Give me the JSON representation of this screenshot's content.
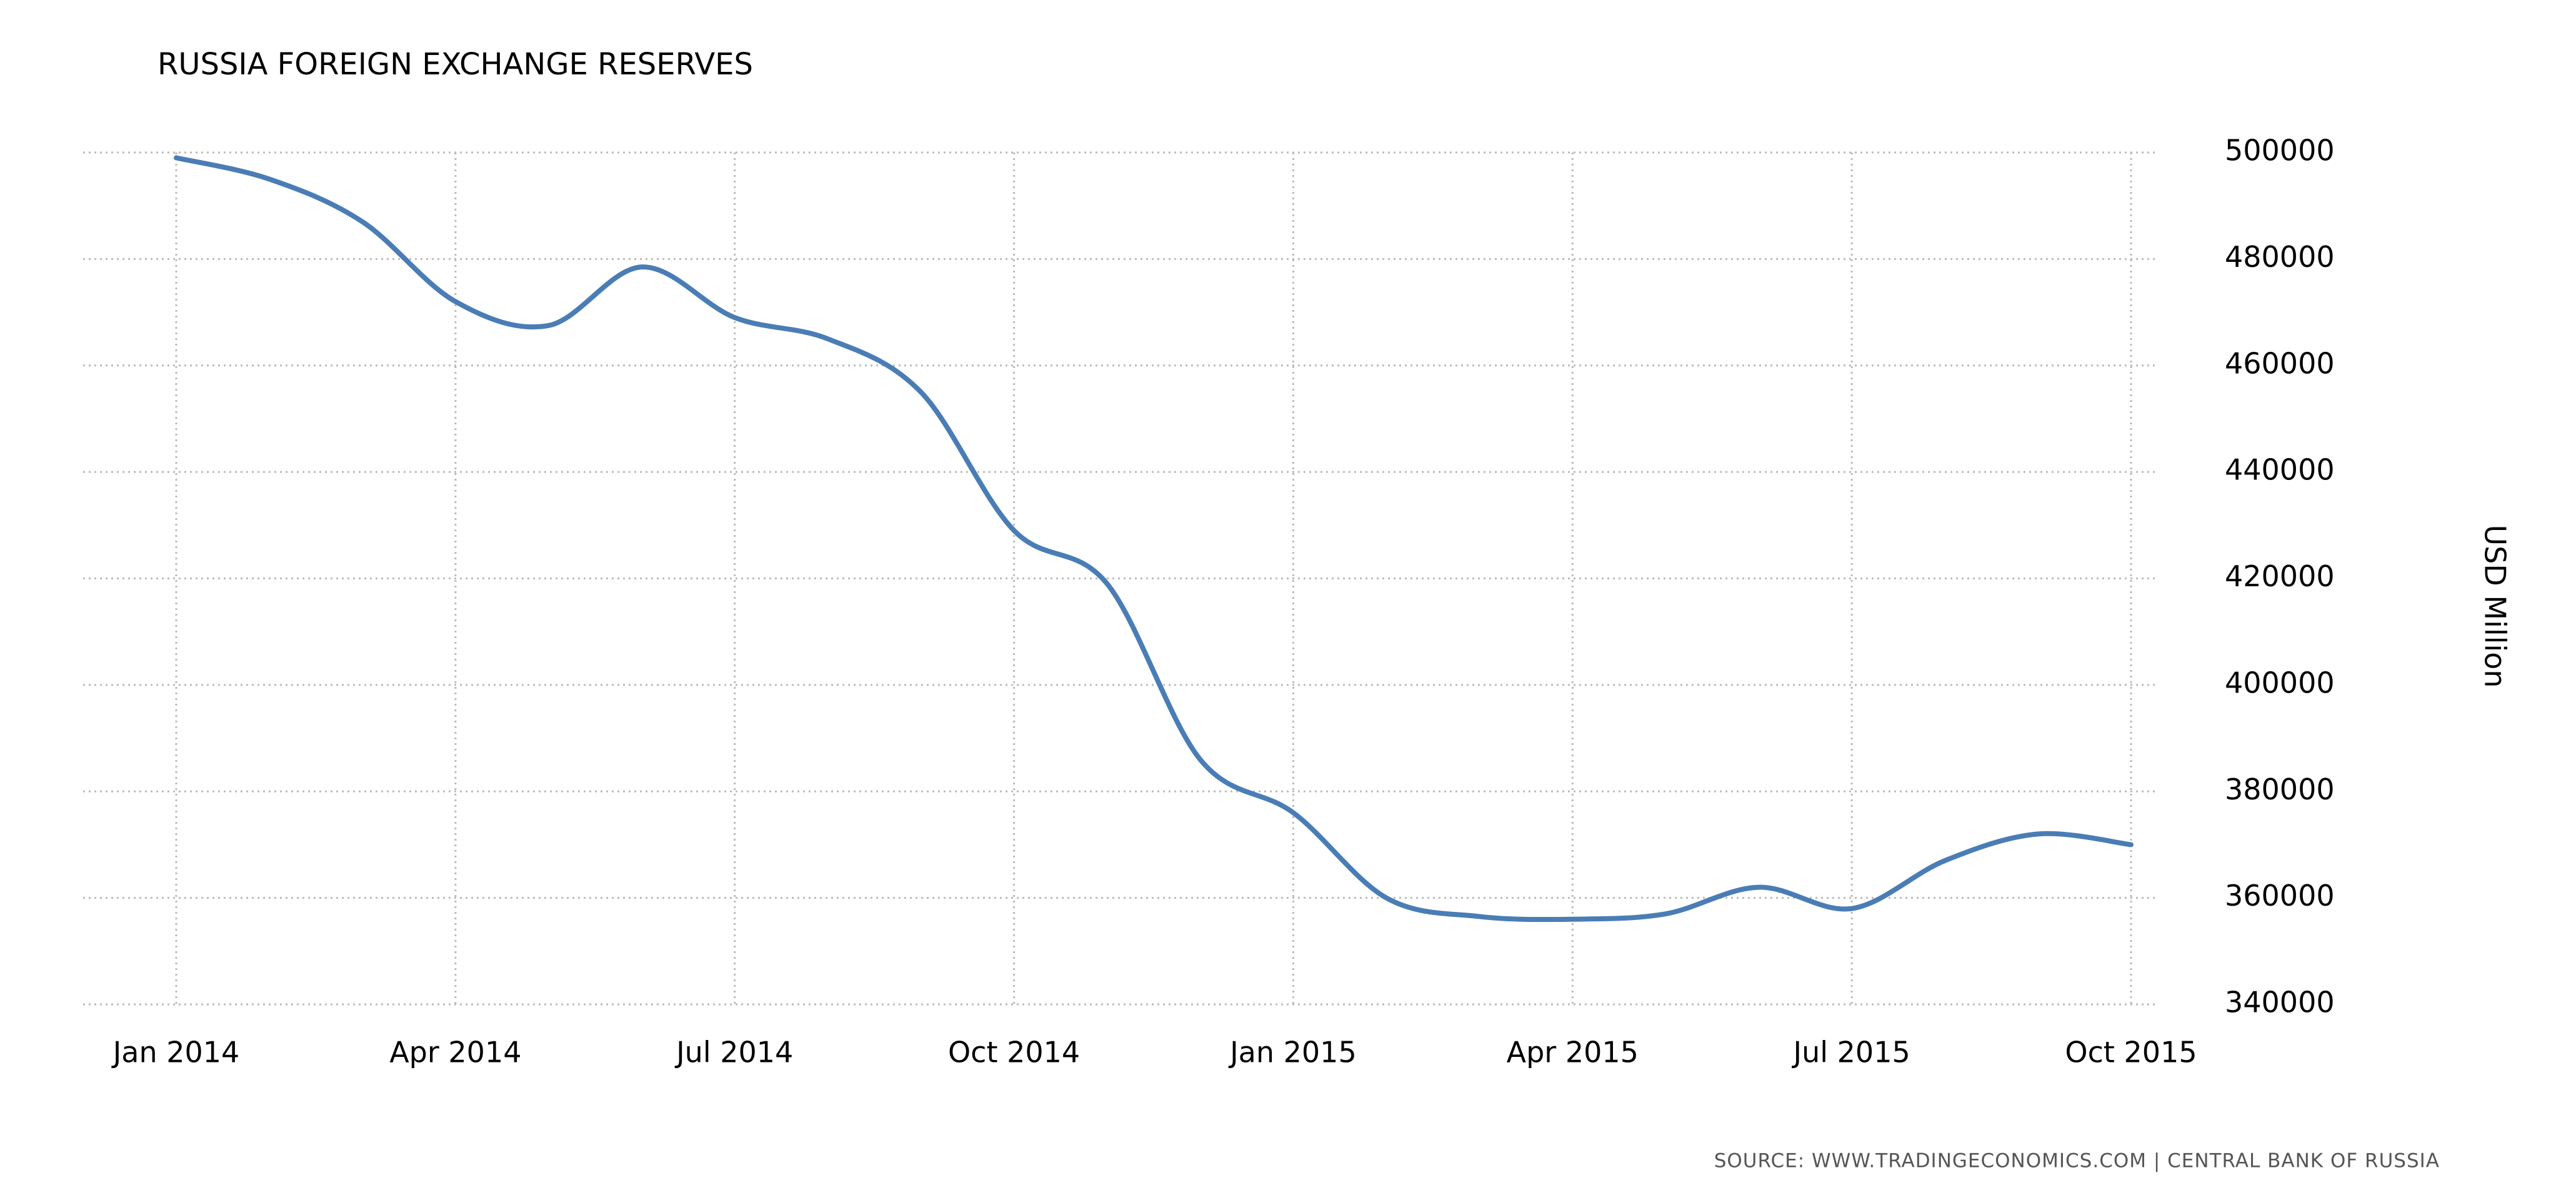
{
  "chart_data": {
    "type": "line",
    "title": "RUSSIA FOREIGN EXCHANGE RESERVES",
    "y_label": "USD Million",
    "source": "SOURCE: WWW.TRADINGECONOMICS.COM | CENTRAL BANK OF RUSSIA",
    "categories": [
      "Jan 2014",
      null,
      null,
      "Apr 2014",
      null,
      null,
      "Jul 2014",
      null,
      null,
      "Oct 2014",
      null,
      null,
      "Jan 2015",
      null,
      null,
      "Apr 2015",
      null,
      null,
      "Jul 2015",
      null,
      null,
      "Oct 2015"
    ],
    "series": [
      {
        "name": "Russia Foreign Exchange Reserves",
        "color": "#4a7db5",
        "values": [
          499000,
          495000,
          487000,
          472000,
          467500,
          478500,
          469000,
          465000,
          455000,
          429000,
          419000,
          386000,
          376000,
          360000,
          356500,
          356000,
          357000,
          362000,
          358000,
          367000,
          372000,
          370000
        ]
      }
    ],
    "ylim": [
      340000,
      500000
    ],
    "yticks": [
      340000,
      360000,
      380000,
      400000,
      420000,
      440000,
      460000,
      480000,
      500000
    ],
    "grid": true,
    "y_axis_side": "right"
  }
}
